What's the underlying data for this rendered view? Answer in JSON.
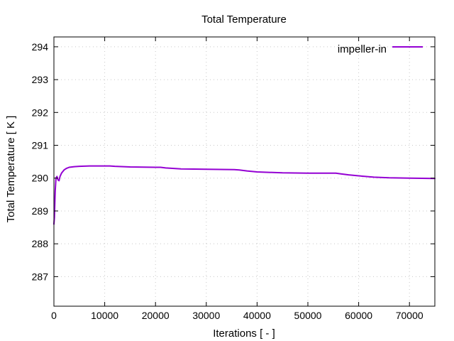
{
  "chart_data": {
    "type": "line",
    "title": "Total Temperature",
    "xlabel": "Iterations [ - ]",
    "ylabel": "Total Temperature [ K ]",
    "xlim": [
      0,
      75000
    ],
    "ylim": [
      286.1,
      294.3
    ],
    "xticks": [
      0,
      10000,
      20000,
      30000,
      40000,
      50000,
      60000,
      70000
    ],
    "yticks": [
      287,
      288,
      289,
      290,
      291,
      292,
      293,
      294
    ],
    "grid": true,
    "legend_position": "top-right",
    "series": [
      {
        "name": "impeller-in",
        "color": "#9400d3",
        "x": [
          0,
          100,
          250,
          400,
          600,
          800,
          1000,
          1200,
          1500,
          2000,
          2500,
          3000,
          4000,
          5000,
          7000,
          10000,
          11000,
          12000,
          15000,
          20000,
          21000,
          22000,
          25000,
          30000,
          35500,
          36500,
          38000,
          40000,
          45000,
          50000,
          55500,
          56500,
          58000,
          60000,
          63000,
          66000,
          70000,
          75000
        ],
        "y": [
          288.6,
          288.8,
          289.6,
          290.0,
          290.05,
          289.95,
          289.92,
          290.05,
          290.15,
          290.25,
          290.3,
          290.33,
          290.35,
          290.36,
          290.37,
          290.37,
          290.37,
          290.36,
          290.34,
          290.33,
          290.33,
          290.31,
          290.28,
          290.27,
          290.26,
          290.25,
          290.22,
          290.19,
          290.16,
          290.15,
          290.15,
          290.13,
          290.1,
          290.07,
          290.03,
          290.01,
          290.0,
          289.99
        ]
      }
    ]
  }
}
